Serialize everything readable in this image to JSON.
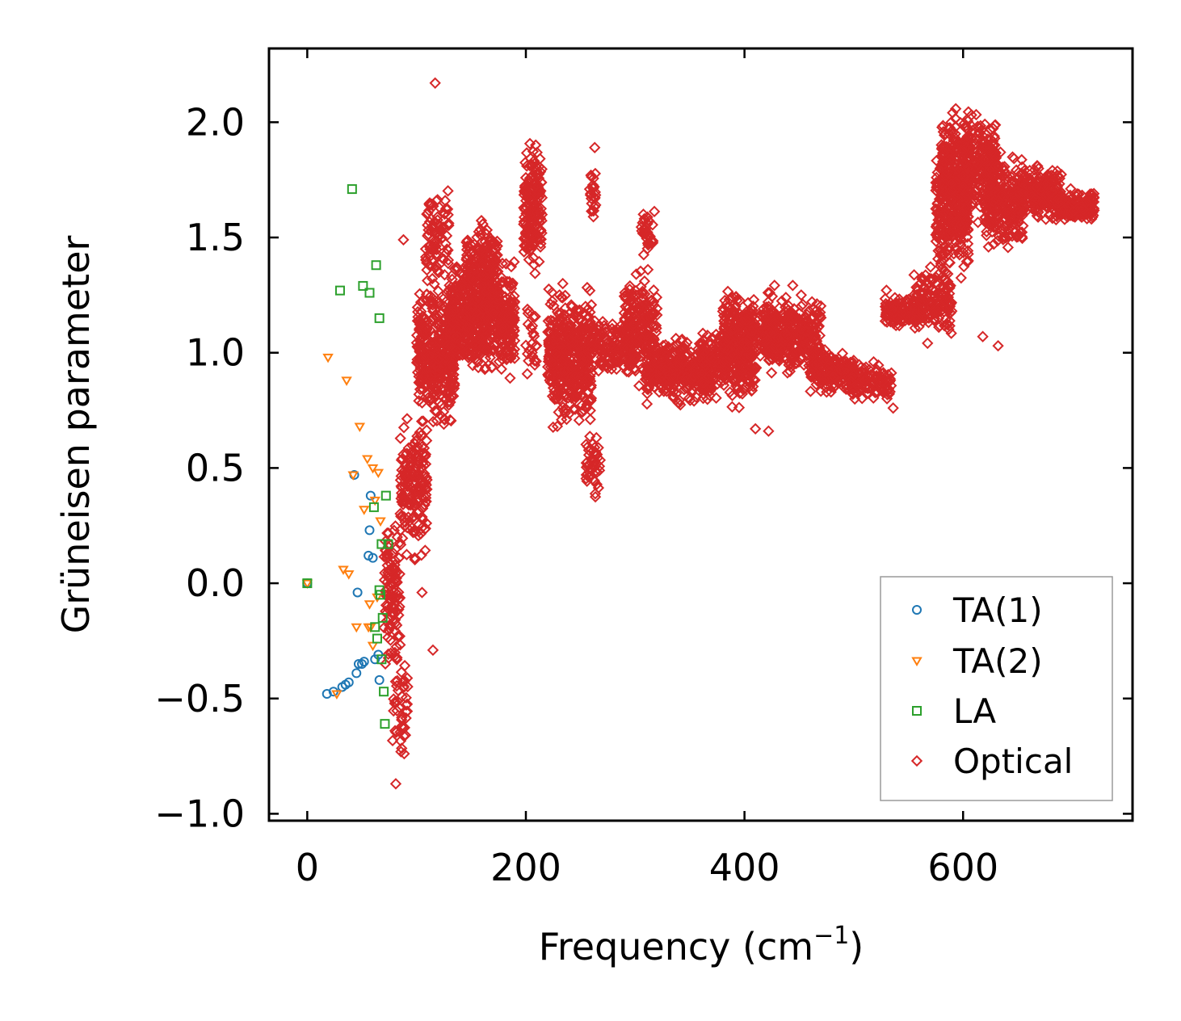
{
  "chart_data": {
    "type": "scatter",
    "title": "",
    "xlabel": "Frequency (cm",
    "xlabel_sup": "−1",
    "xlabel_end": ")",
    "ylabel": "Grüneisen parameter",
    "xlim": [
      -35,
      755
    ],
    "ylim": [
      -1.03,
      2.32
    ],
    "xticks": [
      0,
      200,
      400,
      600
    ],
    "xtick_labels": [
      "0",
      "200",
      "400",
      "600"
    ],
    "yticks": [
      -1.0,
      -0.5,
      0.0,
      0.5,
      1.0,
      1.5,
      2.0
    ],
    "ytick_labels": [
      "−1.0",
      "−0.5",
      "0.0",
      "0.5",
      "1.0",
      "1.5",
      "2.0"
    ],
    "legend_position": "bottom-right",
    "series": [
      {
        "name": "TA(1)",
        "marker": "circle",
        "color": "#1f77b4",
        "x": [
          0,
          18,
          24,
          32,
          35,
          38,
          45,
          47,
          50,
          52,
          56,
          57,
          58,
          60,
          62,
          65,
          66,
          46,
          43
        ],
        "y": [
          0.0,
          -0.48,
          -0.47,
          -0.45,
          -0.44,
          -0.43,
          -0.39,
          -0.35,
          -0.35,
          -0.34,
          0.12,
          0.23,
          0.38,
          0.11,
          -0.33,
          -0.31,
          -0.42,
          -0.04,
          0.47
        ]
      },
      {
        "name": "TA(2)",
        "marker": "triangle-down",
        "color": "#ff7f0e",
        "x": [
          0,
          19,
          27,
          33,
          36,
          38,
          42,
          48,
          52,
          55,
          57,
          58,
          60,
          62,
          65,
          67,
          45,
          56,
          60,
          64
        ],
        "y": [
          0.0,
          0.98,
          -0.48,
          0.06,
          0.88,
          0.04,
          0.47,
          0.68,
          0.32,
          0.54,
          -0.09,
          -0.19,
          -0.27,
          0.36,
          0.48,
          0.27,
          -0.19,
          -0.19,
          0.5,
          -0.06
        ]
      },
      {
        "name": "LA",
        "marker": "square",
        "color": "#2ca02c",
        "x": [
          0,
          30,
          41,
          51,
          57,
          63,
          66,
          61,
          68,
          70,
          71,
          72,
          66,
          64,
          69,
          67,
          74,
          62,
          68
        ],
        "y": [
          0.0,
          1.27,
          1.71,
          1.29,
          1.26,
          1.38,
          1.15,
          0.33,
          0.17,
          -0.47,
          -0.61,
          0.38,
          -0.03,
          -0.24,
          -0.15,
          -0.05,
          0.17,
          -0.19,
          -0.33
        ]
      },
      {
        "name": "Optical",
        "marker": "diamond",
        "color": "#d62728",
        "clusters": [
          {
            "x": [
              70,
              85
            ],
            "y": [
              -0.45,
              0.35
            ],
            "n": 110
          },
          {
            "x": [
              78,
              92
            ],
            "y": [
              -0.88,
              -0.2
            ],
            "n": 45
          },
          {
            "x": [
              85,
              110
            ],
            "y": [
              0.05,
              0.8
            ],
            "n": 170
          },
          {
            "x": [
              100,
              135
            ],
            "y": [
              0.6,
              1.35
            ],
            "n": 380
          },
          {
            "x": [
              108,
              130
            ],
            "y": [
              1.2,
              1.8
            ],
            "n": 90
          },
          {
            "x": [
              130,
              160
            ],
            "y": [
              0.85,
              1.45
            ],
            "n": 360
          },
          {
            "x": [
              145,
              175
            ],
            "y": [
              1.15,
              1.62
            ],
            "n": 160
          },
          {
            "x": [
              160,
              190
            ],
            "y": [
              0.85,
              1.45
            ],
            "n": 300
          },
          {
            "x": [
              198,
              215
            ],
            "y": [
              1.3,
              2.0
            ],
            "n": 180
          },
          {
            "x": [
              200,
              210
            ],
            "y": [
              0.85,
              1.25
            ],
            "n": 25
          },
          {
            "x": [
              220,
              260
            ],
            "y": [
              0.6,
              1.35
            ],
            "n": 440
          },
          {
            "x": [
              255,
              268
            ],
            "y": [
              0.35,
              0.7
            ],
            "n": 45
          },
          {
            "x": [
              258,
              264
            ],
            "y": [
              1.45,
              1.9
            ],
            "n": 25
          },
          {
            "x": [
              260,
              300
            ],
            "y": [
              0.85,
              1.2
            ],
            "n": 150
          },
          {
            "x": [
              290,
              320
            ],
            "y": [
              0.8,
              1.4
            ],
            "n": 220
          },
          {
            "x": [
              305,
              318
            ],
            "y": [
              1.35,
              1.68
            ],
            "n": 30
          },
          {
            "x": [
              310,
              370
            ],
            "y": [
              0.75,
              1.1
            ],
            "n": 360
          },
          {
            "x": [
              360,
              410
            ],
            "y": [
              0.75,
              1.15
            ],
            "n": 260
          },
          {
            "x": [
              380,
              430
            ],
            "y": [
              0.9,
              1.3
            ],
            "n": 300
          },
          {
            "x": [
              420,
              470
            ],
            "y": [
              0.85,
              1.3
            ],
            "n": 300
          },
          {
            "x": [
              460,
              500
            ],
            "y": [
              0.8,
              1.05
            ],
            "n": 170
          },
          {
            "x": [
              495,
              535
            ],
            "y": [
              0.76,
              0.98
            ],
            "n": 110
          },
          {
            "x": [
              528,
              560
            ],
            "y": [
              1.1,
              1.28
            ],
            "n": 110
          },
          {
            "x": [
              555,
              590
            ],
            "y": [
              1.0,
              1.45
            ],
            "n": 150
          },
          {
            "x": [
              575,
              605
            ],
            "y": [
              1.25,
              1.95
            ],
            "n": 260
          },
          {
            "x": [
              580,
              630
            ],
            "y": [
              1.5,
              2.12
            ],
            "n": 420
          },
          {
            "x": [
              620,
              655
            ],
            "y": [
              1.4,
              1.9
            ],
            "n": 230
          },
          {
            "x": [
              650,
              690
            ],
            "y": [
              1.55,
              1.85
            ],
            "n": 220
          },
          {
            "x": [
              685,
              720
            ],
            "y": [
              1.55,
              1.72
            ],
            "n": 180
          }
        ],
        "outliers": [
          {
            "x": 117,
            "y": 2.17
          },
          {
            "x": 115,
            "y": -0.29
          },
          {
            "x": 81,
            "y": -0.87
          },
          {
            "x": 88,
            "y": 1.49
          },
          {
            "x": 105,
            "y": -0.04
          },
          {
            "x": 263,
            "y": 1.89
          },
          {
            "x": 618,
            "y": 1.07
          },
          {
            "x": 632,
            "y": 1.03
          },
          {
            "x": 410,
            "y": 0.67
          },
          {
            "x": 422,
            "y": 0.66
          },
          {
            "x": 536,
            "y": 0.76
          }
        ]
      }
    ]
  }
}
